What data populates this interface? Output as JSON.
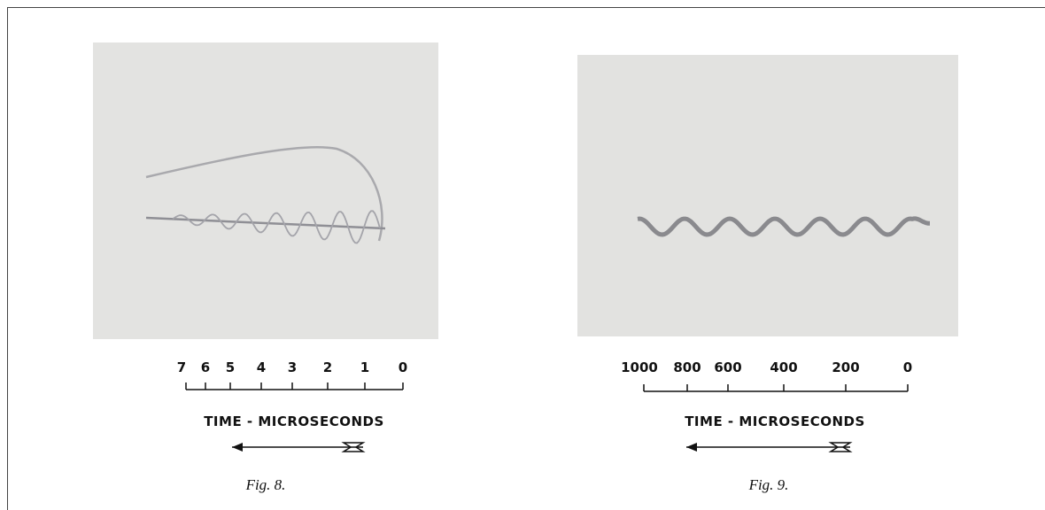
{
  "figures": [
    {
      "ticks": [
        7,
        6,
        5,
        4,
        3,
        2,
        1,
        0
      ],
      "axis_label": "TIME - MICROSECONDS",
      "caption": "Fig. 8."
    },
    {
      "ticks": [
        1000,
        800,
        600,
        400,
        200,
        0
      ],
      "axis_label": "TIME - MICROSECONDS",
      "caption": "Fig. 9."
    }
  ]
}
